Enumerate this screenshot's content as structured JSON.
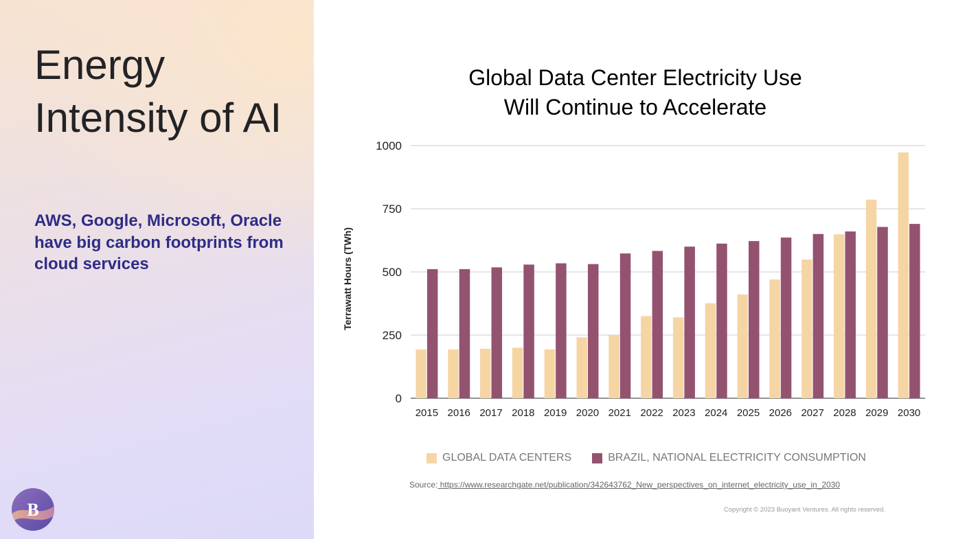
{
  "slide": {
    "title": "Energy Intensity of AI",
    "subtitle": "AWS, Google, Microsoft, Oracle have big carbon footprints from cloud services",
    "logo_letter": "B"
  },
  "chart_data": {
    "type": "bar",
    "title_lines": [
      "Global Data Center Electricity Use",
      "Will Continue to Accelerate"
    ],
    "ylabel": "Terrawatt Hours (TWh)",
    "xlabel": "",
    "ylim": [
      0,
      1000
    ],
    "yticks": [
      0,
      250,
      500,
      750,
      1000
    ],
    "grid": true,
    "legend_position": "bottom",
    "categories": [
      "2015",
      "2016",
      "2017",
      "2018",
      "2019",
      "2020",
      "2021",
      "2022",
      "2023",
      "2024",
      "2025",
      "2026",
      "2027",
      "2028",
      "2029",
      "2030"
    ],
    "series": [
      {
        "name": "GLOBAL DATA CENTERS",
        "color": "#f6d5a5",
        "values": [
          193,
          193,
          196,
          200,
          193,
          241,
          250,
          325,
          320,
          376,
          411,
          470,
          549,
          649,
          786,
          973
        ]
      },
      {
        "name": "BRAZIL, NATIONAL ELECTRICITY CONSUMPTION",
        "color": "#945271",
        "values": [
          511,
          511,
          518,
          529,
          534,
          531,
          573,
          583,
          600,
          612,
          622,
          636,
          650,
          660,
          678,
          690
        ]
      }
    ]
  },
  "source": {
    "label": "Source:",
    "url": " https://www.researchgate.net/publication/342643762_New_perspectives_on_internet_electricity_use_in_2030"
  },
  "copyright": "Copyright © 2023 Buoyant Ventures. All rights reserved.",
  "colors": {
    "title_text": "#222326",
    "subtitle_text": "#2e2c85",
    "gridline": "#cccccc",
    "axis": "#555555"
  }
}
